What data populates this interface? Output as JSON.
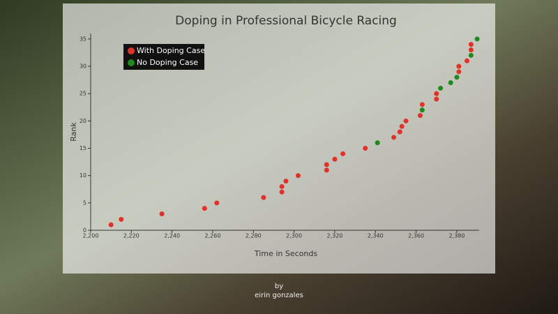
{
  "chart_data": {
    "type": "scatter",
    "title": "Doping in Professional Bicycle Racing",
    "xlabel": "Time in Seconds",
    "ylabel": "Rank",
    "credit": [
      "by",
      "eirin gonzales"
    ],
    "legend": "top-left",
    "xlim": [
      2200,
      2391
    ],
    "ylim": [
      0,
      36
    ],
    "xticks": [
      {
        "value": 2200,
        "label": "2,200"
      },
      {
        "value": 2220,
        "label": "2,220"
      },
      {
        "value": 2240,
        "label": "2,240"
      },
      {
        "value": 2260,
        "label": "2,260"
      },
      {
        "value": 2280,
        "label": "2,280"
      },
      {
        "value": 2300,
        "label": "2,300"
      },
      {
        "value": 2320,
        "label": "2,320"
      },
      {
        "value": 2340,
        "label": "2,340"
      },
      {
        "value": 2360,
        "label": "2,360"
      },
      {
        "value": 2380,
        "label": "2,380"
      }
    ],
    "yticks": [
      0,
      5,
      10,
      15,
      20,
      25,
      30,
      35
    ],
    "series": [
      {
        "name": "With Doping Case",
        "color": "#e0322a",
        "x": [
          2210,
          2215,
          2235,
          2256,
          2262,
          2285,
          2294,
          2294,
          2296,
          2302,
          2316,
          2316,
          2320,
          2324,
          2335,
          2349,
          2352,
          2353,
          2355,
          2362,
          2363,
          2370,
          2370,
          2381,
          2381,
          2385,
          2387,
          2387
        ],
        "values": [
          1,
          2,
          3,
          4,
          5,
          6,
          7,
          8,
          9,
          10,
          11,
          12,
          13,
          14,
          15,
          17,
          18,
          19,
          20,
          21,
          23,
          24,
          25,
          29,
          30,
          31,
          33,
          34
        ]
      },
      {
        "name": "No Doping Case",
        "color": "#1e8a1e",
        "x": [
          2341,
          2363,
          2372,
          2377,
          2380,
          2387,
          2390
        ],
        "values": [
          16,
          22,
          26,
          27,
          28,
          32,
          35
        ]
      }
    ]
  }
}
